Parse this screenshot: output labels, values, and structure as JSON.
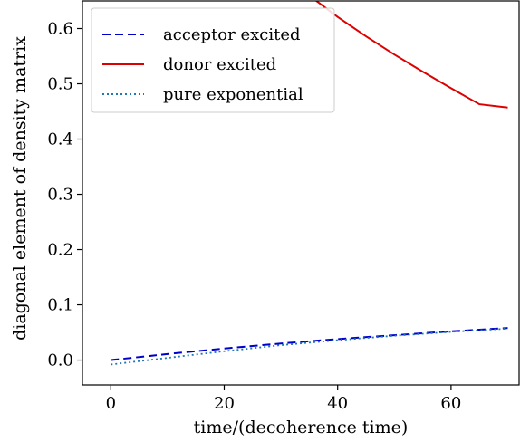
{
  "chart_data": {
    "type": "line",
    "xlabel": "time/(decoherence time)",
    "ylabel": "diagonal element of density matrix",
    "xlim": [
      -5,
      72
    ],
    "ylim": [
      -0.045,
      0.65
    ],
    "xticks": [
      0,
      20,
      40,
      60
    ],
    "yticks": [
      0.0,
      0.1,
      0.2,
      0.3,
      0.4,
      0.5,
      0.6
    ],
    "ytick_labels": [
      "0.0",
      "0.1",
      "0.2",
      "0.3",
      "0.4",
      "0.5",
      "0.6"
    ],
    "legend_position": "top-left",
    "series": [
      {
        "name": "acceptor excited",
        "style": "dashed",
        "color": "#0000cc",
        "x": [
          0,
          10,
          20,
          30,
          40,
          50,
          60,
          70
        ],
        "y": [
          0.0,
          0.011,
          0.021,
          0.03,
          0.038,
          0.045,
          0.052,
          0.058
        ]
      },
      {
        "name": "donor excited",
        "style": "solid",
        "color": "#dd0000",
        "x": [
          36,
          40,
          45,
          50,
          55,
          60,
          65,
          70
        ],
        "y": [
          0.652,
          0.621,
          0.586,
          0.553,
          0.522,
          0.492,
          0.463,
          0.457
        ]
      },
      {
        "name": "pure exponential",
        "style": "dotted",
        "color": "#1f77b4",
        "x": [
          0,
          10,
          20,
          30,
          40,
          50,
          60,
          70
        ],
        "y": [
          -0.008,
          0.004,
          0.016,
          0.027,
          0.036,
          0.044,
          0.051,
          0.057
        ]
      }
    ]
  }
}
